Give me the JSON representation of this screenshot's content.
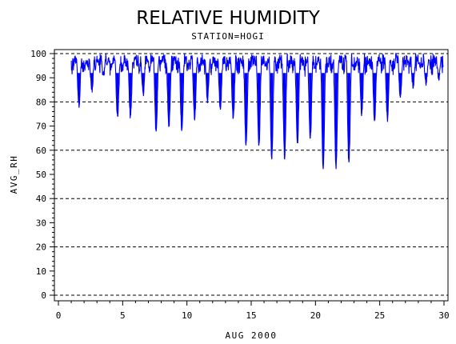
{
  "chart_data": {
    "type": "line",
    "title": "RELATIVE HUMIDITY",
    "subtitle": "STATION=HOGI",
    "xlabel": "AUG 2000",
    "ylabel": "AVG_RH",
    "xlim": [
      0,
      30
    ],
    "ylim": [
      0,
      100
    ],
    "x_ticks": [
      0,
      5,
      10,
      15,
      20,
      25,
      30
    ],
    "y_ticks": [
      0,
      10,
      20,
      30,
      40,
      50,
      60,
      70,
      80,
      90,
      100
    ],
    "reference_lines": [
      0,
      20,
      40,
      60,
      80,
      100
    ],
    "series_color": "#0000ff",
    "daily_minimum_rh": [
      {
        "day": 1.6,
        "rh": 79
      },
      {
        "day": 2.6,
        "rh": 85
      },
      {
        "day": 3.5,
        "rh": 91
      },
      {
        "day": 4.6,
        "rh": 74
      },
      {
        "day": 5.6,
        "rh": 74
      },
      {
        "day": 6.6,
        "rh": 83
      },
      {
        "day": 7.6,
        "rh": 68
      },
      {
        "day": 8.6,
        "rh": 70
      },
      {
        "day": 9.6,
        "rh": 68
      },
      {
        "day": 10.6,
        "rh": 73
      },
      {
        "day": 11.6,
        "rh": 81
      },
      {
        "day": 12.6,
        "rh": 77
      },
      {
        "day": 13.6,
        "rh": 73
      },
      {
        "day": 14.6,
        "rh": 62
      },
      {
        "day": 15.6,
        "rh": 62
      },
      {
        "day": 16.6,
        "rh": 57
      },
      {
        "day": 17.6,
        "rh": 57
      },
      {
        "day": 18.6,
        "rh": 63
      },
      {
        "day": 19.6,
        "rh": 65
      },
      {
        "day": 20.6,
        "rh": 53
      },
      {
        "day": 21.6,
        "rh": 53
      },
      {
        "day": 22.6,
        "rh": 55
      },
      {
        "day": 23.6,
        "rh": 75
      },
      {
        "day": 24.6,
        "rh": 73
      },
      {
        "day": 25.6,
        "rh": 73
      },
      {
        "day": 26.6,
        "rh": 82
      },
      {
        "day": 27.6,
        "rh": 86
      },
      {
        "day": 28.6,
        "rh": 88
      },
      {
        "day": 29.6,
        "rh": 90
      }
    ]
  }
}
